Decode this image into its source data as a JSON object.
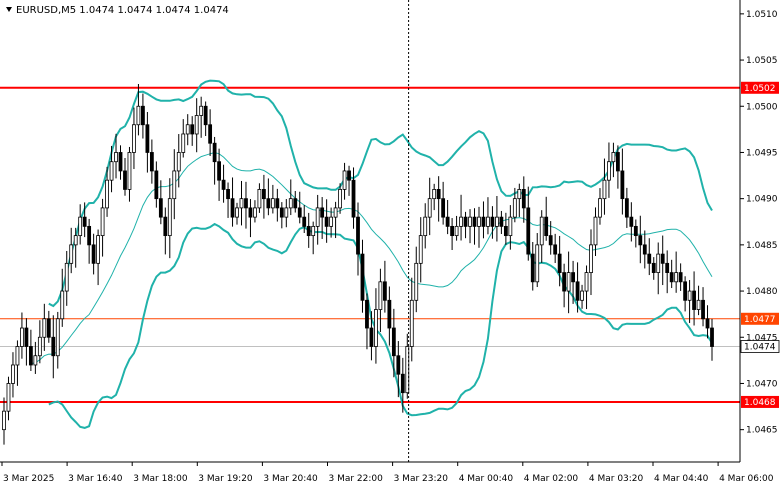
{
  "header": {
    "symbol": "EURUSD,M5",
    "ohlc": "1.0474 1.0474 1.0474 1.0474",
    "title": "EURUSD,M5  1.0474 1.0474 1.0474 1.0474"
  },
  "colors": {
    "background": "#ffffff",
    "candle": "#000000",
    "bollinger_outer": "#20b2aa",
    "moving_average": "#20b2aa",
    "resistance_line": "#ff0000",
    "support_line": "#ff0000",
    "level_mid": "#ff4500",
    "cursor_line": "#000000",
    "current_price_label_bg": "#ffffff"
  },
  "chart_data": {
    "type": "candlestick",
    "symbol": "EURUSD",
    "timeframe": "M5",
    "x_tick_labels": [
      "3 Mar 2025",
      "3 Mar 16:40",
      "3 Mar 18:00",
      "3 Mar 19:20",
      "3 Mar 20:40",
      "3 Mar 22:00",
      "3 Mar 23:20",
      "4 Mar 00:40",
      "4 Mar 02:00",
      "4 Mar 03:20",
      "4 Mar 04:40",
      "4 Mar 06:00"
    ],
    "y_tick_labels": [
      "1.0510",
      "1.0505",
      "1.0500",
      "1.0495",
      "1.0490",
      "1.0485",
      "1.0480",
      "1.0475",
      "1.0470",
      "1.0465"
    ],
    "y_ticks": [
      1.051,
      1.0505,
      1.05,
      1.0495,
      1.049,
      1.0485,
      1.048,
      1.0475,
      1.047,
      1.0465
    ],
    "ylim": [
      1.04615,
      1.05115
    ],
    "levels": [
      {
        "price": 1.0502,
        "label": "1.0502",
        "color": "#ff0000"
      },
      {
        "price": 1.0477,
        "label": "1.0477",
        "color": "#ff4500"
      },
      {
        "price": 1.0468,
        "label": "1.0468",
        "color": "#ff0000"
      }
    ],
    "current_price": {
      "price": 1.0474,
      "label": "1.0474"
    },
    "cursor_x_label": "3 Mar 23:20",
    "closes": [
      1.0467,
      1.047,
      1.0472,
      1.0474,
      1.0476,
      1.0474,
      1.0472,
      1.0473,
      1.0475,
      1.0477,
      1.0475,
      1.0473,
      1.0477,
      1.048,
      1.0483,
      1.0485,
      1.0486,
      1.0488,
      1.0487,
      1.0485,
      1.0483,
      1.0486,
      1.0489,
      1.0492,
      1.0494,
      1.0495,
      1.0493,
      1.0491,
      1.0495,
      1.0498,
      1.05,
      1.0498,
      1.0495,
      1.0493,
      1.049,
      1.0488,
      1.0486,
      1.049,
      1.0493,
      1.0495,
      1.0497,
      1.0498,
      1.0497,
      1.0499,
      1.05,
      1.0498,
      1.0496,
      1.0494,
      1.0492,
      1.0491,
      1.049,
      1.0488,
      1.0489,
      1.049,
      1.0489,
      1.0488,
      1.0489,
      1.0491,
      1.049,
      1.0489,
      1.049,
      1.0489,
      1.0488,
      1.0489,
      1.049,
      1.0489,
      1.0488,
      1.0487,
      1.0486,
      1.0487,
      1.0489,
      1.0488,
      1.0487,
      1.0488,
      1.0489,
      1.0491,
      1.0493,
      1.0492,
      1.0488,
      1.0484,
      1.0479,
      1.0476,
      1.0474,
      1.0478,
      1.0481,
      1.0479,
      1.0476,
      1.0473,
      1.0471,
      1.0469,
      1.0474,
      1.0479,
      1.0483,
      1.0486,
      1.0488,
      1.049,
      1.0491,
      1.049,
      1.0488,
      1.0487,
      1.0486,
      1.0487,
      1.0488,
      1.0487,
      1.0488,
      1.0487,
      1.0488,
      1.0487,
      1.0488,
      1.0487,
      1.0488,
      1.0487,
      1.0486,
      1.0488,
      1.049,
      1.0491,
      1.0489,
      1.0484,
      1.0481,
      1.0485,
      1.0488,
      1.0486,
      1.0485,
      1.0484,
      1.0482,
      1.048,
      1.0482,
      1.0481,
      1.0479,
      1.048,
      1.0482,
      1.0485,
      1.0488,
      1.049,
      1.0492,
      1.0494,
      1.0495,
      1.0493,
      1.049,
      1.0488,
      1.0487,
      1.0486,
      1.0485,
      1.0484,
      1.0483,
      1.0482,
      1.0484,
      1.0483,
      1.0482,
      1.0481,
      1.0482,
      1.0481,
      1.0479,
      1.048,
      1.0478,
      1.0479,
      1.0477,
      1.0476,
      1.0474
    ]
  }
}
